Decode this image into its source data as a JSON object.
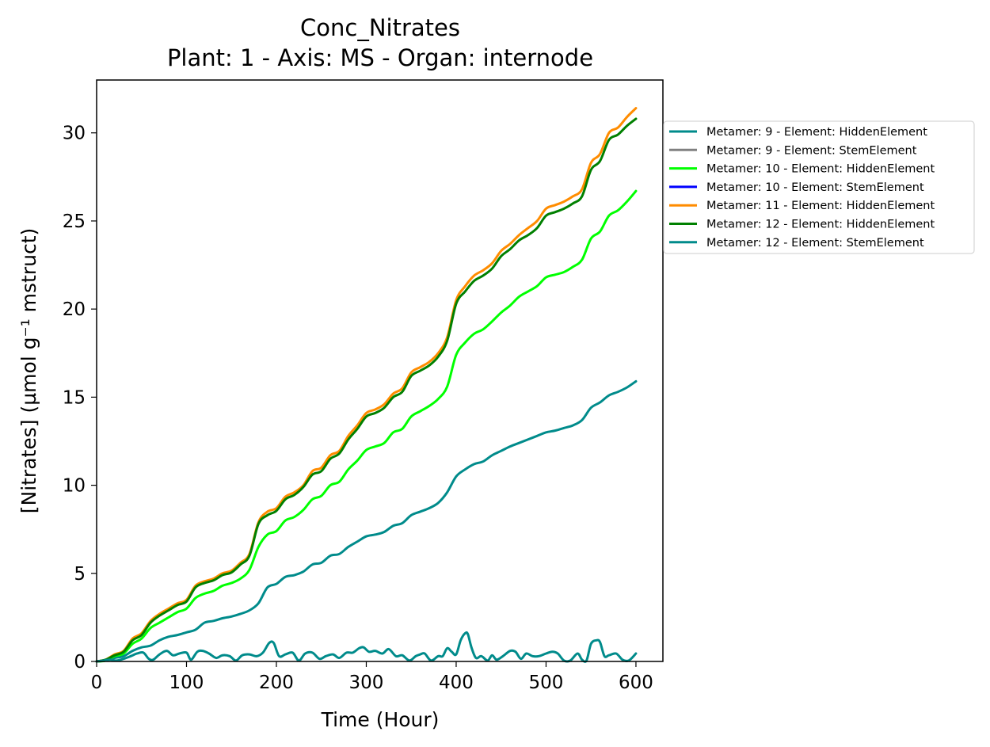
{
  "chart_data": {
    "type": "line",
    "title": "Conc_Nitrates",
    "subtitle": "Plant: 1 - Axis: MS - Organ: internode",
    "xlabel": "Time (Hour)",
    "ylabel": "[Nitrates] (µmol g⁻¹ mstruct)",
    "xlim": [
      0,
      630
    ],
    "ylim": [
      0,
      33
    ],
    "xticks": [
      "0",
      "100",
      "200",
      "300",
      "400",
      "500",
      "600"
    ],
    "yticks": [
      "0",
      "5",
      "10",
      "15",
      "20",
      "25",
      "30"
    ],
    "xtick_values": [
      0,
      100,
      200,
      300,
      400,
      500,
      600
    ],
    "ytick_values": [
      0,
      5,
      10,
      15,
      20,
      25,
      30
    ],
    "grid": false,
    "legend_position": "right, outside plot",
    "series": [
      {
        "name": "Metamer: 9 - Element: HiddenElement",
        "color": "#008b8b",
        "x": [
          0,
          10,
          20,
          30,
          40,
          50,
          60,
          70,
          80,
          90,
          100,
          110,
          120,
          130,
          140,
          150,
          160,
          170,
          180,
          190,
          200,
          210,
          220,
          230,
          240,
          250,
          260,
          270,
          280,
          290,
          300,
          310,
          320,
          330,
          340,
          350,
          360,
          370,
          380,
          390,
          400,
          410,
          420,
          430,
          440,
          450,
          460,
          470,
          480,
          490,
          500,
          510,
          520,
          530,
          540,
          550,
          560,
          570,
          580,
          590,
          600
        ],
        "values": [
          0,
          0.05,
          0.2,
          0.3,
          0.6,
          0.8,
          0.9,
          1.2,
          1.4,
          1.5,
          1.65,
          1.8,
          2.2,
          2.3,
          2.45,
          2.55,
          2.7,
          2.9,
          3.3,
          4.2,
          4.4,
          4.8,
          4.9,
          5.1,
          5.5,
          5.6,
          6.0,
          6.1,
          6.5,
          6.8,
          7.1,
          7.2,
          7.35,
          7.7,
          7.85,
          8.3,
          8.5,
          8.7,
          9.0,
          9.6,
          10.5,
          10.9,
          11.2,
          11.35,
          11.7,
          11.95,
          12.2,
          12.4,
          12.6,
          12.8,
          13.0,
          13.1,
          13.25,
          13.4,
          13.7,
          14.4,
          14.7,
          15.1,
          15.3,
          15.55,
          15.9
        ]
      },
      {
        "name": "Metamer: 9 - Element: StemElement",
        "color": "#808080",
        "x": [],
        "values": []
      },
      {
        "name": "Metamer: 10 - Element: HiddenElement",
        "color": "#00ff00",
        "x": [
          0,
          10,
          20,
          30,
          40,
          50,
          60,
          70,
          80,
          90,
          100,
          110,
          120,
          130,
          140,
          150,
          160,
          170,
          180,
          190,
          200,
          210,
          220,
          230,
          240,
          250,
          260,
          270,
          280,
          290,
          300,
          310,
          320,
          330,
          340,
          350,
          360,
          370,
          380,
          390,
          400,
          410,
          420,
          430,
          440,
          450,
          460,
          470,
          480,
          490,
          500,
          510,
          520,
          530,
          540,
          550,
          560,
          570,
          580,
          590,
          600
        ],
        "values": [
          0,
          0.05,
          0.3,
          0.45,
          1.0,
          1.3,
          1.9,
          2.2,
          2.5,
          2.8,
          3.0,
          3.6,
          3.85,
          4.0,
          4.3,
          4.45,
          4.7,
          5.2,
          6.5,
          7.2,
          7.4,
          8.0,
          8.2,
          8.6,
          9.2,
          9.4,
          10.0,
          10.2,
          10.9,
          11.4,
          12.0,
          12.2,
          12.4,
          13.0,
          13.2,
          13.9,
          14.2,
          14.5,
          14.9,
          15.6,
          17.4,
          18.1,
          18.6,
          18.85,
          19.3,
          19.8,
          20.2,
          20.7,
          21.0,
          21.3,
          21.8,
          21.95,
          22.1,
          22.4,
          22.8,
          24.0,
          24.4,
          25.3,
          25.6,
          26.1,
          26.7
        ]
      },
      {
        "name": "Metamer: 10 - Element: StemElement",
        "color": "#0000ff",
        "x": [],
        "values": []
      },
      {
        "name": "Metamer: 11 - Element: HiddenElement",
        "color": "#ff8c00",
        "x": [
          0,
          10,
          20,
          30,
          40,
          50,
          60,
          70,
          80,
          90,
          100,
          110,
          120,
          130,
          140,
          150,
          160,
          170,
          180,
          190,
          200,
          210,
          220,
          230,
          240,
          250,
          260,
          270,
          280,
          290,
          300,
          310,
          320,
          330,
          340,
          350,
          360,
          370,
          380,
          390,
          400,
          410,
          420,
          430,
          440,
          450,
          460,
          470,
          480,
          490,
          500,
          510,
          520,
          530,
          540,
          550,
          560,
          570,
          580,
          590,
          600
        ],
        "values": [
          0,
          0.1,
          0.4,
          0.6,
          1.3,
          1.6,
          2.3,
          2.7,
          3.0,
          3.3,
          3.5,
          4.3,
          4.55,
          4.7,
          5.0,
          5.15,
          5.6,
          6.1,
          7.9,
          8.5,
          8.7,
          9.35,
          9.6,
          10.0,
          10.8,
          11.0,
          11.7,
          11.95,
          12.8,
          13.4,
          14.1,
          14.3,
          14.6,
          15.2,
          15.5,
          16.4,
          16.7,
          17.0,
          17.5,
          18.4,
          20.5,
          21.3,
          21.9,
          22.2,
          22.6,
          23.3,
          23.7,
          24.2,
          24.6,
          25.0,
          25.7,
          25.9,
          26.1,
          26.4,
          26.8,
          28.3,
          28.8,
          30.0,
          30.3,
          30.9,
          31.4
        ]
      },
      {
        "name": "Metamer: 12 - Element: HiddenElement",
        "color": "#008000",
        "x": [
          0,
          10,
          20,
          30,
          40,
          50,
          60,
          70,
          80,
          90,
          100,
          110,
          120,
          130,
          140,
          150,
          160,
          170,
          180,
          190,
          200,
          210,
          220,
          230,
          240,
          250,
          260,
          270,
          280,
          290,
          300,
          310,
          320,
          330,
          340,
          350,
          360,
          370,
          380,
          390,
          400,
          410,
          420,
          430,
          440,
          450,
          460,
          470,
          480,
          490,
          500,
          510,
          520,
          530,
          540,
          550,
          560,
          570,
          580,
          590,
          600
        ],
        "values": [
          0,
          0.1,
          0.35,
          0.55,
          1.2,
          1.5,
          2.2,
          2.6,
          2.9,
          3.2,
          3.4,
          4.2,
          4.45,
          4.6,
          4.9,
          5.05,
          5.5,
          6.0,
          7.8,
          8.3,
          8.55,
          9.2,
          9.45,
          9.9,
          10.6,
          10.8,
          11.5,
          11.8,
          12.6,
          13.2,
          13.9,
          14.1,
          14.4,
          15.0,
          15.3,
          16.2,
          16.5,
          16.8,
          17.3,
          18.2,
          20.3,
          21.0,
          21.6,
          21.9,
          22.3,
          23.0,
          23.4,
          23.9,
          24.2,
          24.6,
          25.3,
          25.5,
          25.7,
          26.0,
          26.4,
          27.9,
          28.4,
          29.6,
          29.9,
          30.4,
          30.8
        ]
      },
      {
        "name": "Metamer: 12 - Element: StemElement",
        "color": "#008b8b",
        "x": [
          0,
          8,
          15,
          22,
          30,
          38,
          45,
          52,
          58,
          63,
          70,
          78,
          85,
          92,
          100,
          105,
          112,
          118,
          125,
          133,
          140,
          148,
          155,
          162,
          170,
          178,
          185,
          192,
          197,
          203,
          210,
          218,
          225,
          232,
          240,
          248,
          255,
          263,
          270,
          278,
          285,
          292,
          297,
          303,
          310,
          318,
          325,
          333,
          340,
          348,
          355,
          360,
          365,
          372,
          380,
          385,
          390,
          395,
          400,
          405,
          410,
          413,
          417,
          422,
          428,
          435,
          440,
          445,
          452,
          460,
          466,
          472,
          478,
          485,
          492,
          500,
          507,
          513,
          520,
          527,
          535,
          540,
          545,
          550,
          556,
          560,
          565,
          570,
          578,
          585,
          592,
          600
        ],
        "values": [
          0,
          0.05,
          0.1,
          0.05,
          0.15,
          0.3,
          0.45,
          0.5,
          0.15,
          0.1,
          0.4,
          0.6,
          0.35,
          0.45,
          0.5,
          0.1,
          0.55,
          0.6,
          0.45,
          0.2,
          0.35,
          0.3,
          0.05,
          0.35,
          0.4,
          0.3,
          0.5,
          1.05,
          1.05,
          0.3,
          0.4,
          0.5,
          0.05,
          0.45,
          0.5,
          0.15,
          0.3,
          0.4,
          0.2,
          0.5,
          0.5,
          0.75,
          0.8,
          0.55,
          0.6,
          0.45,
          0.7,
          0.3,
          0.35,
          0.05,
          0.3,
          0.4,
          0.45,
          0.05,
          0.3,
          0.3,
          0.75,
          0.55,
          0.4,
          1.2,
          1.6,
          1.55,
          0.8,
          0.2,
          0.3,
          0.05,
          0.35,
          0.1,
          0.3,
          0.6,
          0.55,
          0.15,
          0.45,
          0.3,
          0.3,
          0.45,
          0.55,
          0.45,
          0.05,
          0.05,
          0.45,
          0.1,
          0.05,
          1.0,
          1.2,
          1.1,
          0.3,
          0.35,
          0.45,
          0.1,
          0.05,
          0.45
        ]
      }
    ]
  }
}
